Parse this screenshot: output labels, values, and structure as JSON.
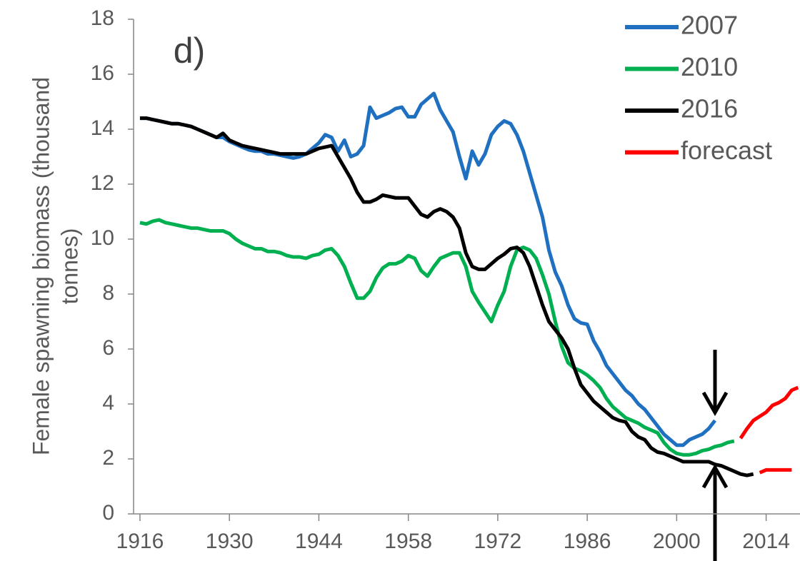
{
  "chart_data": {
    "type": "line",
    "annotation": "d)",
    "y_label": [
      "Female spawning biomass (thousand",
      "tonnes)"
    ],
    "xlim": [
      1915,
      2019.3
    ],
    "xticks": [
      1916,
      1930,
      1944,
      1958,
      1972,
      1986,
      2000,
      2014
    ],
    "ylim": [
      0,
      18
    ],
    "yticks": [
      0,
      2,
      4,
      6,
      8,
      10,
      12,
      14,
      16,
      18
    ],
    "legend": "upper right",
    "series": [
      {
        "name": "2007",
        "color": "#1f70c1",
        "x": [
          1916,
          1917,
          1918,
          1919,
          1920,
          1921,
          1922,
          1923,
          1924,
          1925,
          1926,
          1927,
          1928,
          1929,
          1930,
          1931,
          1932,
          1933,
          1934,
          1935,
          1936,
          1937,
          1938,
          1939,
          1940,
          1941,
          1942,
          1943,
          1944,
          1945,
          1946,
          1947,
          1948,
          1949,
          1950,
          1951,
          1952,
          1953,
          1954,
          1955,
          1956,
          1957,
          1958,
          1959,
          1960,
          1961,
          1962,
          1963,
          1964,
          1965,
          1966,
          1967,
          1968,
          1969,
          1970,
          1971,
          1972,
          1973,
          1974,
          1975,
          1976,
          1977,
          1978,
          1979,
          1980,
          1981,
          1982,
          1983,
          1984,
          1985,
          1986,
          1987,
          1988,
          1989,
          1990,
          1991,
          1992,
          1993,
          1994,
          1995,
          1996,
          1997,
          1998,
          1999,
          2000,
          2001,
          2002,
          2003,
          2004,
          2005,
          2006
        ],
        "values": [
          14.4,
          14.4,
          14.35,
          14.3,
          14.25,
          14.2,
          14.2,
          14.15,
          14.1,
          14.0,
          13.9,
          13.8,
          13.7,
          13.7,
          13.55,
          13.45,
          13.35,
          13.25,
          13.2,
          13.2,
          13.1,
          13.1,
          13.05,
          13.0,
          12.95,
          13.0,
          13.1,
          13.3,
          13.5,
          13.8,
          13.7,
          13.2,
          13.6,
          13.0,
          13.1,
          13.4,
          14.8,
          14.4,
          14.5,
          14.6,
          14.75,
          14.8,
          14.45,
          14.45,
          14.9,
          15.1,
          15.3,
          14.7,
          14.3,
          13.9,
          13.0,
          12.2,
          13.2,
          12.7,
          13.1,
          13.8,
          14.1,
          14.3,
          14.2,
          13.8,
          13.2,
          12.4,
          11.6,
          10.8,
          9.6,
          8.8,
          8.3,
          7.6,
          7.1,
          6.95,
          6.9,
          6.3,
          5.9,
          5.4,
          5.1,
          4.8,
          4.5,
          4.3,
          4.0,
          3.8,
          3.5,
          3.2,
          2.9,
          2.7,
          2.5,
          2.5,
          2.7,
          2.8,
          2.9,
          3.1,
          3.4
        ]
      },
      {
        "name": "2010",
        "color": "#00b050",
        "x": [
          1916,
          1917,
          1918,
          1919,
          1920,
          1921,
          1922,
          1923,
          1924,
          1925,
          1926,
          1927,
          1928,
          1929,
          1930,
          1931,
          1932,
          1933,
          1934,
          1935,
          1936,
          1937,
          1938,
          1939,
          1940,
          1941,
          1942,
          1943,
          1944,
          1945,
          1946,
          1947,
          1948,
          1949,
          1950,
          1951,
          1952,
          1953,
          1954,
          1955,
          1956,
          1957,
          1958,
          1959,
          1960,
          1961,
          1962,
          1963,
          1964,
          1965,
          1966,
          1967,
          1968,
          1969,
          1970,
          1971,
          1972,
          1973,
          1974,
          1975,
          1976,
          1977,
          1978,
          1979,
          1980,
          1981,
          1982,
          1983,
          1984,
          1985,
          1986,
          1987,
          1988,
          1989,
          1990,
          1991,
          1992,
          1993,
          1994,
          1995,
          1996,
          1997,
          1998,
          1999,
          2000,
          2001,
          2002,
          2003,
          2004,
          2005,
          2006,
          2007,
          2008,
          2009
        ],
        "values": [
          10.6,
          10.55,
          10.65,
          10.7,
          10.6,
          10.55,
          10.5,
          10.45,
          10.4,
          10.4,
          10.35,
          10.3,
          10.3,
          10.3,
          10.2,
          10.0,
          9.85,
          9.75,
          9.65,
          9.65,
          9.55,
          9.55,
          9.5,
          9.4,
          9.35,
          9.35,
          9.3,
          9.4,
          9.45,
          9.6,
          9.65,
          9.4,
          9.0,
          8.4,
          7.85,
          7.85,
          8.1,
          8.6,
          8.95,
          9.1,
          9.1,
          9.2,
          9.4,
          9.3,
          8.85,
          8.65,
          9.0,
          9.3,
          9.4,
          9.5,
          9.5,
          9.0,
          8.1,
          7.7,
          7.35,
          7.0,
          7.6,
          8.1,
          9.0,
          9.6,
          9.7,
          9.6,
          9.3,
          8.7,
          8.0,
          7.0,
          6.1,
          5.5,
          5.3,
          5.2,
          5.05,
          4.85,
          4.6,
          4.2,
          3.9,
          3.7,
          3.5,
          3.4,
          3.3,
          3.15,
          3.05,
          2.95,
          2.6,
          2.35,
          2.2,
          2.15,
          2.15,
          2.2,
          2.3,
          2.35,
          2.45,
          2.5,
          2.6,
          2.65
        ]
      },
      {
        "name": "2016",
        "color": "#000000",
        "x": [
          1916,
          1917,
          1918,
          1919,
          1920,
          1921,
          1922,
          1923,
          1924,
          1925,
          1926,
          1927,
          1928,
          1929,
          1930,
          1931,
          1932,
          1933,
          1934,
          1935,
          1936,
          1937,
          1938,
          1939,
          1940,
          1941,
          1942,
          1943,
          1944,
          1945,
          1946,
          1947,
          1948,
          1949,
          1950,
          1951,
          1952,
          1953,
          1954,
          1955,
          1956,
          1957,
          1958,
          1959,
          1960,
          1961,
          1962,
          1963,
          1964,
          1965,
          1966,
          1967,
          1968,
          1969,
          1970,
          1971,
          1972,
          1973,
          1974,
          1975,
          1976,
          1977,
          1978,
          1979,
          1980,
          1981,
          1982,
          1983,
          1984,
          1985,
          1986,
          1987,
          1988,
          1989,
          1990,
          1991,
          1992,
          1993,
          1994,
          1995,
          1996,
          1997,
          1998,
          1999,
          2000,
          2001,
          2002,
          2003,
          2004,
          2005,
          2006,
          2007,
          2008,
          2009,
          2010,
          2011,
          2012
        ],
        "values": [
          14.4,
          14.4,
          14.35,
          14.3,
          14.25,
          14.2,
          14.2,
          14.15,
          14.1,
          14.0,
          13.9,
          13.8,
          13.7,
          13.85,
          13.6,
          13.5,
          13.4,
          13.35,
          13.3,
          13.25,
          13.2,
          13.15,
          13.1,
          13.1,
          13.1,
          13.1,
          13.1,
          13.2,
          13.3,
          13.35,
          13.4,
          13.0,
          12.6,
          12.2,
          11.7,
          11.35,
          11.35,
          11.45,
          11.6,
          11.55,
          11.5,
          11.5,
          11.5,
          11.2,
          10.9,
          10.8,
          11.0,
          11.1,
          11.0,
          10.8,
          10.4,
          9.5,
          9.0,
          8.9,
          8.9,
          9.1,
          9.3,
          9.45,
          9.65,
          9.7,
          9.5,
          9.0,
          8.3,
          7.6,
          7.0,
          6.7,
          6.4,
          6.0,
          5.3,
          4.7,
          4.4,
          4.1,
          3.9,
          3.7,
          3.5,
          3.4,
          3.35,
          3.0,
          2.8,
          2.7,
          2.4,
          2.25,
          2.2,
          2.1,
          2.0,
          1.9,
          1.9,
          1.9,
          1.9,
          1.9,
          1.8,
          1.75,
          1.65,
          1.55,
          1.45,
          1.4,
          1.45
        ]
      },
      {
        "name": "forecast",
        "color": "#ff0000",
        "x": [
          2010,
          2011,
          2012,
          2013,
          2014,
          2015,
          2016,
          2017,
          2018,
          2019
        ],
        "values": [
          2.75,
          3.1,
          3.4,
          3.55,
          3.7,
          3.95,
          4.05,
          4.2,
          4.5,
          4.6
        ]
      },
      {
        "color": "#ff0000",
        "x": [
          2013,
          2014,
          2015,
          2016,
          2017,
          2018
        ],
        "values": [
          1.5,
          1.6,
          1.6,
          1.6,
          1.6,
          1.6
        ]
      }
    ]
  }
}
